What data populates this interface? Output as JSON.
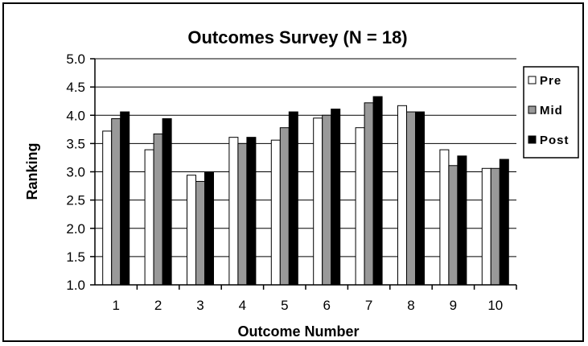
{
  "chart_data": {
    "type": "bar",
    "title": "Outcomes Survey (N = 18)",
    "xlabel": "Outcome Number",
    "ylabel": "Ranking",
    "categories": [
      "1",
      "2",
      "3",
      "4",
      "5",
      "6",
      "7",
      "8",
      "9",
      "10"
    ],
    "ylim": [
      1.0,
      5.0
    ],
    "yticks": [
      "1.0",
      "1.5",
      "2.0",
      "2.5",
      "3.0",
      "3.5",
      "4.0",
      "4.5",
      "5.0"
    ],
    "grid": true,
    "legend_position": "right",
    "series": [
      {
        "name": "Pre",
        "color": "#ffffff",
        "values": [
          3.72,
          3.39,
          2.94,
          3.61,
          3.56,
          3.95,
          3.78,
          4.17,
          3.39,
          3.06
        ]
      },
      {
        "name": "Mid",
        "color": "#999999",
        "values": [
          3.94,
          3.67,
          2.83,
          3.5,
          3.78,
          4.0,
          4.22,
          4.06,
          3.11,
          3.06
        ]
      },
      {
        "name": "Post",
        "color": "#000000",
        "values": [
          4.06,
          3.94,
          3.0,
          3.61,
          4.06,
          4.11,
          4.33,
          4.06,
          3.28,
          3.22
        ]
      }
    ]
  }
}
